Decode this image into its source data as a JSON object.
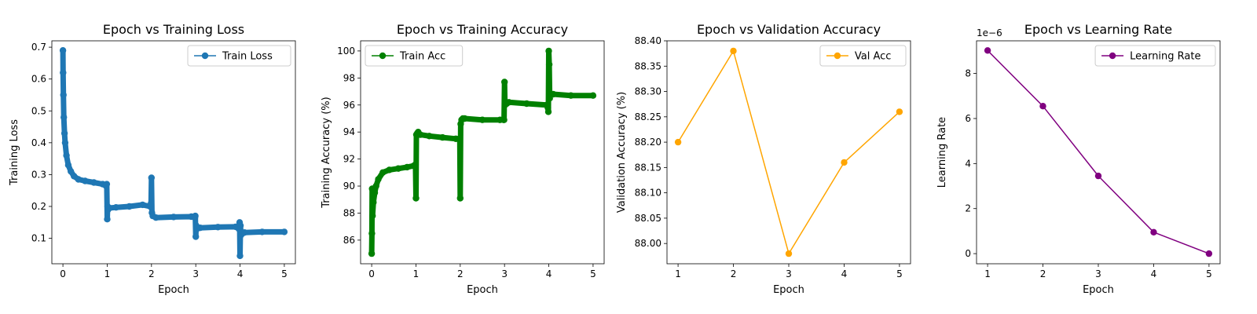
{
  "chart_data": [
    {
      "type": "line",
      "title": "Epoch vs Training Loss",
      "xlabel": "Epoch",
      "ylabel": "Training Loss",
      "xlim": [
        -0.25,
        5.25
      ],
      "ylim": [
        0.02,
        0.72
      ],
      "xticks": [
        0,
        1,
        2,
        3,
        4,
        5
      ],
      "yticks": [
        0.1,
        0.2,
        0.3,
        0.4,
        0.5,
        0.6,
        0.7
      ],
      "ytick_decimals": 1,
      "legend_position": "top-right",
      "grid": false,
      "series": [
        {
          "name": "Train Loss",
          "color": "#1f77b4",
          "dense": true,
          "x": [
            0,
            0.004,
            0.01,
            0.02,
            0.035,
            0.05,
            0.08,
            0.12,
            0.18,
            0.25,
            0.35,
            0.5,
            0.7,
            0.9,
            0.97,
            0.99,
            1.0,
            1.01,
            1.02,
            1.05,
            1.2,
            1.5,
            1.8,
            1.97,
            1.99,
            2.0,
            2.01,
            2.03,
            2.1,
            2.5,
            2.9,
            2.98,
            2.99,
            3.0,
            3.01,
            3.03,
            3.1,
            3.5,
            3.9,
            3.97,
            3.99,
            4.0,
            4.01,
            4.02,
            4.05,
            4.1,
            4.5,
            5.0
          ],
          "y": [
            0.69,
            0.62,
            0.55,
            0.48,
            0.43,
            0.4,
            0.36,
            0.33,
            0.31,
            0.295,
            0.285,
            0.28,
            0.275,
            0.27,
            0.265,
            0.27,
            0.16,
            0.2,
            0.19,
            0.195,
            0.197,
            0.2,
            0.205,
            0.2,
            0.21,
            0.29,
            0.18,
            0.17,
            0.165,
            0.167,
            0.168,
            0.165,
            0.17,
            0.105,
            0.14,
            0.13,
            0.133,
            0.135,
            0.136,
            0.13,
            0.15,
            0.045,
            0.14,
            0.11,
            0.115,
            0.118,
            0.12,
            0.12
          ]
        }
      ]
    },
    {
      "type": "line",
      "title": "Epoch vs Training Accuracy",
      "xlabel": "Epoch",
      "ylabel": "Training Accuracy (%)",
      "xlim": [
        -0.25,
        5.25
      ],
      "ylim": [
        84.25,
        100.75
      ],
      "xticks": [
        0,
        1,
        2,
        3,
        4,
        5
      ],
      "yticks": [
        86,
        88,
        90,
        92,
        94,
        96,
        98,
        100
      ],
      "ytick_decimals": 0,
      "legend_position": "top-left",
      "grid": false,
      "series": [
        {
          "name": "Train Acc",
          "color": "#008000",
          "dense": true,
          "x": [
            0,
            0.005,
            0.01,
            0.02,
            0.04,
            0.07,
            0.1,
            0.15,
            0.25,
            0.4,
            0.6,
            0.8,
            0.95,
            0.99,
            1.0,
            1.01,
            1.03,
            1.05,
            1.1,
            1.3,
            1.6,
            1.9,
            1.98,
            1.99,
            2.0,
            2.01,
            2.03,
            2.06,
            2.1,
            2.5,
            2.9,
            2.98,
            2.99,
            3.0,
            3.01,
            3.02,
            3.05,
            3.1,
            3.5,
            3.95,
            3.98,
            3.99,
            4.0,
            4.01,
            4.02,
            4.03,
            4.06,
            4.1,
            4.5,
            5.0
          ],
          "y": [
            85.0,
            86.5,
            89.8,
            87.8,
            88.8,
            89.5,
            90.0,
            90.5,
            91.0,
            91.2,
            91.3,
            91.4,
            91.5,
            91.6,
            89.1,
            93.8,
            93.9,
            94.0,
            93.8,
            93.7,
            93.6,
            93.5,
            93.5,
            93.4,
            89.1,
            94.6,
            94.9,
            95.0,
            95.0,
            94.9,
            94.9,
            94.9,
            94.9,
            97.7,
            96.0,
            96.2,
            96.1,
            96.2,
            96.1,
            96.0,
            95.8,
            95.5,
            100.0,
            99.0,
            96.5,
            96.8,
            96.8,
            96.8,
            96.7,
            96.7
          ]
        }
      ]
    },
    {
      "type": "line",
      "title": "Epoch vs Validation Accuracy",
      "xlabel": "Epoch",
      "ylabel": "Validation Accuracy (%)",
      "xlim": [
        0.8,
        5.2
      ],
      "ylim": [
        87.96,
        88.4
      ],
      "xticks": [
        1,
        2,
        3,
        4,
        5
      ],
      "yticks": [
        88.0,
        88.05,
        88.1,
        88.15,
        88.2,
        88.25,
        88.3,
        88.35,
        88.4
      ],
      "ytick_decimals": 2,
      "legend_position": "top-right",
      "grid": false,
      "series": [
        {
          "name": "Val Acc",
          "color": "#ffa500",
          "dense": false,
          "x": [
            1,
            2,
            3,
            4,
            5
          ],
          "y": [
            88.2,
            88.38,
            87.98,
            88.16,
            88.26
          ]
        }
      ]
    },
    {
      "type": "line",
      "title": "Epoch vs Learning Rate",
      "xlabel": "Epoch",
      "ylabel": "Learning Rate",
      "scale_label": "1e−6",
      "xlim": [
        0.8,
        5.2
      ],
      "ylim": [
        -0.45,
        9.45
      ],
      "xticks": [
        1,
        2,
        3,
        4,
        5
      ],
      "yticks": [
        0,
        2,
        4,
        6,
        8
      ],
      "ytick_decimals": 0,
      "legend_position": "top-right",
      "grid": false,
      "series": [
        {
          "name": "Learning Rate",
          "color": "#800080",
          "dense": false,
          "x": [
            1,
            2,
            3,
            4,
            5
          ],
          "y": [
            9.02,
            6.55,
            3.45,
            0.95,
            0.0
          ]
        }
      ]
    }
  ]
}
